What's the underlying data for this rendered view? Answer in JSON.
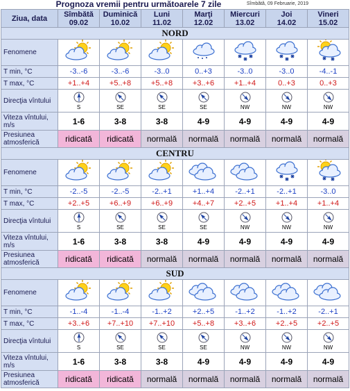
{
  "title": "Prognoza vremii pentru următoarele 7 zile",
  "date": "Sîmbătă, 09 Februarie, 2019",
  "header": {
    "label": "Ziua, data",
    "days": [
      {
        "name": "Sîmbătă",
        "date": "09.02"
      },
      {
        "name": "Duminică",
        "date": "10.02"
      },
      {
        "name": "Luni",
        "date": "11.02"
      },
      {
        "name": "Marţi",
        "date": "12.02"
      },
      {
        "name": "Miercuri",
        "date": "13.02"
      },
      {
        "name": "Joi",
        "date": "14.02"
      },
      {
        "name": "Vineri",
        "date": "15.02"
      }
    ]
  },
  "row_labels": {
    "phenomena": "Fenomene",
    "tmin": "T min, °C",
    "tmax": "T max, °C",
    "wind_direction": "Direcţia vîntului",
    "wind_speed": "Viteza vîntului, m/s",
    "pressure": "Presiunea atmosferică"
  },
  "regions": [
    {
      "name": "NORD",
      "tmin": [
        "-3..-6",
        "-3..-6",
        "-3..0",
        "0..+3",
        "-3..0",
        "-3..0",
        "-4..-1"
      ],
      "tmax": [
        "+1..+4",
        "+5..+8",
        "+5..+8",
        "+3..+6",
        "+1..+4",
        "0..+3",
        "0..+3"
      ],
      "wind_direction": [
        "S",
        "SE",
        "SE",
        "SE",
        "NW",
        "NW",
        "NW"
      ],
      "wind_speed": [
        "1-6",
        "3-8",
        "3-8",
        "4-9",
        "4-9",
        "4-9",
        "4-9"
      ],
      "pressure": [
        "ridicată",
        "ridicată",
        "normală",
        "normală",
        "normală",
        "normală",
        "normală"
      ]
    },
    {
      "name": "CENTRU",
      "tmin": [
        "-2..-5",
        "-2..-5",
        "-2..+1",
        "+1..+4",
        "-2..+1",
        "-2..+1",
        "-3..0"
      ],
      "tmax": [
        "+2..+5",
        "+6..+9",
        "+6..+9",
        "+4..+7",
        "+2..+5",
        "+1..+4",
        "+1..+4"
      ],
      "wind_direction": [
        "S",
        "SE",
        "SE",
        "SE",
        "NW",
        "NW",
        "NW"
      ],
      "wind_speed": [
        "1-6",
        "3-8",
        "3-8",
        "4-9",
        "4-9",
        "4-9",
        "4-9"
      ],
      "pressure": [
        "ridicată",
        "ridicată",
        "normală",
        "normală",
        "normală",
        "normală",
        "normală"
      ]
    },
    {
      "name": "SUD",
      "tmin": [
        "-1..-4",
        "-1..-4",
        "-1..+2",
        "+2..+5",
        "-1..+2",
        "-1..+2",
        "-2..+1"
      ],
      "tmax": [
        "+3..+6",
        "+7..+10",
        "+7..+10",
        "+5..+8",
        "+3..+6",
        "+2..+5",
        "+2..+5"
      ],
      "wind_direction": [
        "S",
        "SE",
        "SE",
        "SE",
        "NW",
        "NW",
        "NW"
      ],
      "wind_speed": [
        "1-6",
        "3-8",
        "3-8",
        "4-9",
        "4-9",
        "4-9",
        "4-9"
      ],
      "pressure": [
        "ridicată",
        "ridicată",
        "normală",
        "normală",
        "normală",
        "normală",
        "normală"
      ]
    }
  ]
}
